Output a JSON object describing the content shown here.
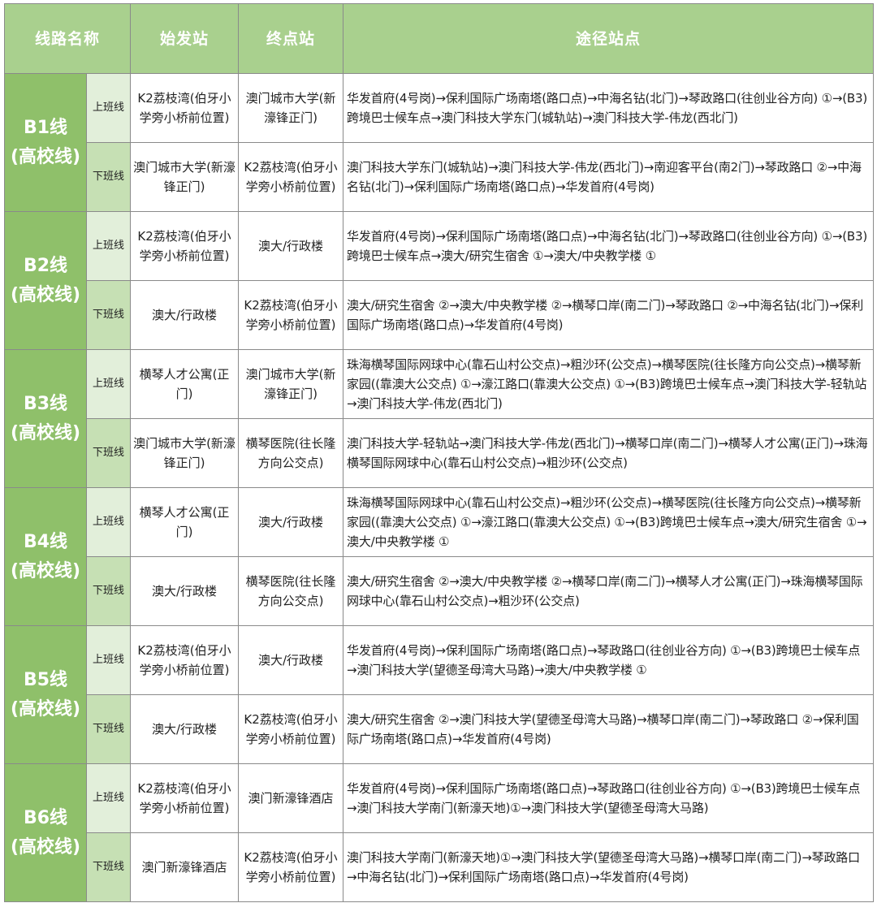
{
  "header": {
    "route_name": "线路名称",
    "origin": "始发站",
    "terminal": "终点站",
    "stops": "途径站点"
  },
  "colors": {
    "header": "#a9d08e",
    "route_cell": "#8fc06a",
    "up_cell": "#e2efda",
    "down_cell": "#c6e0b4"
  },
  "routes": [
    {
      "name": "B1线",
      "sub": "(高校线)",
      "trips": [
        {
          "dir": "上班线",
          "origin": "K2荔枝湾(伯牙小学旁小桥前位置)",
          "terminal": "澳门城市大学(新濠锋正门)",
          "stops": "华发首府(4号岗)→保利国际广场南塔(路口点)→中海名钻(北门)→琴政路口(往创业谷方向) ①→(B3)跨境巴士候车点→澳门科技大学东门(城轨站)→澳门科技大学-伟龙(西北门)"
        },
        {
          "dir": "下班线",
          "origin": "澳门城市大学(新濠锋正门)",
          "terminal": "K2荔枝湾(伯牙小学旁小桥前位置)",
          "stops": "澳门科技大学东门(城轨站)→澳门科技大学-伟龙(西北门)→南迎客平台(南2门)→琴政路口 ②→中海名钻(北门)→保利国际广场南塔(路口点)→华发首府(4号岗)"
        }
      ]
    },
    {
      "name": "B2线",
      "sub": "(高校线)",
      "trips": [
        {
          "dir": "上班线",
          "origin": "K2荔枝湾(伯牙小学旁小桥前位置)",
          "terminal": "澳大/行政楼",
          "stops": "华发首府(4号岗)→保利国际广场南塔(路口点)→中海名钻(北门)→琴政路口(往创业谷方向) ①→(B3)跨境巴士候车点→澳大/研究生宿舍 ①→澳大/中央教学楼 ①"
        },
        {
          "dir": "下班线",
          "origin": "澳大/行政楼",
          "terminal": "K2荔枝湾(伯牙小学旁小桥前位置)",
          "stops": "澳大/研究生宿舍 ②→澳大/中央教学楼 ②→横琴口岸(南二门)→琴政路口 ②→中海名钻(北门)→保利国际广场南塔(路口点)→华发首府(4号岗)"
        }
      ]
    },
    {
      "name": "B3线",
      "sub": "(高校线)",
      "trips": [
        {
          "dir": "上班线",
          "origin": "横琴人才公寓(正门)",
          "terminal": "澳门城市大学(新濠锋正门)",
          "stops": "珠海横琴国际网球中心(靠石山村公交点)→粗沙环(公交点)→横琴医院(往长隆方向公交点)→横琴新家园((靠澳大公交点) ①→濠江路口(靠澳大公交点) ①→(B3)跨境巴士候车点→澳门科技大学-轻轨站→澳门科技大学-伟龙(西北门)"
        },
        {
          "dir": "下班线",
          "origin": "澳门城市大学(新濠锋正门)",
          "terminal": "横琴医院(往长隆方向公交点)",
          "stops": "澳门科技大学-轻轨站→澳门科技大学-伟龙(西北门)→横琴口岸(南二门)→横琴人才公寓(正门)→珠海横琴国际网球中心(靠石山村公交点)→粗沙环(公交点)"
        }
      ]
    },
    {
      "name": "B4线",
      "sub": "(高校线)",
      "trips": [
        {
          "dir": "上班线",
          "origin": "横琴人才公寓(正门)",
          "terminal": "澳大/行政楼",
          "stops": "珠海横琴国际网球中心(靠石山村公交点)→粗沙环(公交点)→横琴医院(往长隆方向公交点)→横琴新家园((靠澳大公交点) ①→濠江路口(靠澳大公交点) ①→(B3)跨境巴士候车点→澳大/研究生宿舍 ①→澳大/中央教学楼 ①"
        },
        {
          "dir": "下班线",
          "origin": "澳大/行政楼",
          "terminal": "横琴医院(往长隆方向公交点)",
          "stops": "澳大/研究生宿舍 ②→澳大/中央教学楼 ②→横琴口岸(南二门)→横琴人才公寓(正门)→珠海横琴国际网球中心(靠石山村公交点)→粗沙环(公交点)"
        }
      ]
    },
    {
      "name": "B5线",
      "sub": "(高校线)",
      "trips": [
        {
          "dir": "上班线",
          "origin": "K2荔枝湾(伯牙小学旁小桥前位置)",
          "terminal": "澳大/行政楼",
          "stops": "华发首府(4号岗)→保利国际广场南塔(路口点)→琴政路口(往创业谷方向) ①→(B3)跨境巴士候车点→澳门科技大学(望德圣母湾大马路)→澳大/中央教学楼 ①"
        },
        {
          "dir": "下班线",
          "origin": "澳大/行政楼",
          "terminal": "K2荔枝湾(伯牙小学旁小桥前位置)",
          "stops": "澳大/研究生宿舍 ②→澳门科技大学(望德圣母湾大马路)→横琴口岸(南二门)→琴政路口 ②→保利国际广场南塔(路口点)→华发首府(4号岗)"
        }
      ]
    },
    {
      "name": "B6线",
      "sub": "(高校线)",
      "trips": [
        {
          "dir": "上班线",
          "origin": "K2荔枝湾(伯牙小学旁小桥前位置)",
          "terminal": "澳门新濠锋酒店",
          "stops": "华发首府(4号岗)→保利国际广场南塔(路口点)→琴政路口(往创业谷方向) ①→(B3)跨境巴士候车点→澳门科技大学南门(新濠天地)①→澳门科技大学(望德圣母湾大马路)"
        },
        {
          "dir": "下班线",
          "origin": "澳门新濠锋酒店",
          "terminal": "K2荔枝湾(伯牙小学旁小桥前位置)",
          "stops": "澳门科技大学南门(新濠天地)①→澳门科技大学(望德圣母湾大马路)→横琴口岸(南二门)→琴政路口→中海名钻(北门)→保利国际广场南塔(路口点)→华发首府(4号岗)"
        }
      ]
    }
  ]
}
